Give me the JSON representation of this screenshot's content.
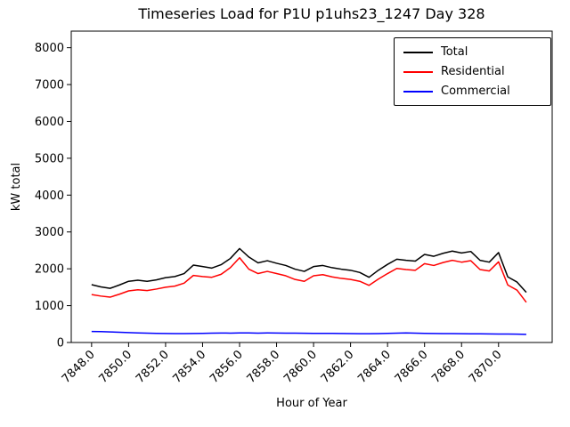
{
  "chart_data": {
    "type": "line",
    "title": "Timeseries Load for P1U p1uhs23_1247  Day 328",
    "xlabel": "Hour of Year",
    "ylabel": "kW total",
    "xlim": [
      7846.9,
      7872.9
    ],
    "ylim": [
      0,
      8450
    ],
    "grid": false,
    "legend_position": "upper right",
    "yticks": [
      0,
      1000,
      2000,
      3000,
      4000,
      5000,
      6000,
      7000,
      8000
    ],
    "ytick_labels": [
      "0",
      "1000",
      "2000",
      "3000",
      "4000",
      "5000",
      "6000",
      "7000",
      "8000"
    ],
    "xticks": [
      7848,
      7850,
      7852,
      7854,
      7856,
      7858,
      7860,
      7862,
      7864,
      7866,
      7868,
      7870
    ],
    "xtick_labels": [
      "7848.0",
      "7850.0",
      "7852.0",
      "7854.0",
      "7856.0",
      "7858.0",
      "7860.0",
      "7862.0",
      "7864.0",
      "7866.0",
      "7868.0",
      "7870.0"
    ],
    "x": [
      7848.0,
      7848.5,
      7849.0,
      7849.5,
      7850.0,
      7850.5,
      7851.0,
      7851.5,
      7852.0,
      7852.5,
      7853.0,
      7853.5,
      7854.0,
      7854.5,
      7855.0,
      7855.5,
      7856.0,
      7856.5,
      7857.0,
      7857.5,
      7858.0,
      7858.5,
      7859.0,
      7859.5,
      7860.0,
      7860.5,
      7861.0,
      7861.5,
      7862.0,
      7862.5,
      7863.0,
      7863.5,
      7864.0,
      7864.5,
      7865.0,
      7865.5,
      7866.0,
      7866.5,
      7867.0,
      7867.5,
      7868.0,
      7868.5,
      7869.0,
      7869.5,
      7870.0,
      7870.5,
      7871.0,
      7871.5
    ],
    "series": [
      {
        "name": "Total",
        "color": "#000000",
        "values": [
          1570,
          1510,
          1470,
          1560,
          1660,
          1690,
          1660,
          1700,
          1760,
          1790,
          1870,
          2100,
          2060,
          2020,
          2110,
          2280,
          2550,
          2320,
          2160,
          2220,
          2150,
          2090,
          1990,
          1930,
          2060,
          2090,
          2030,
          1990,
          1960,
          1900,
          1770,
          1960,
          2120,
          2260,
          2230,
          2210,
          2390,
          2340,
          2420,
          2480,
          2430,
          2470,
          2230,
          2180,
          2440,
          1780,
          1640,
          1360
        ]
      },
      {
        "name": "Residential",
        "color": "#ff0000",
        "values": [
          1300,
          1260,
          1230,
          1310,
          1400,
          1430,
          1410,
          1450,
          1500,
          1530,
          1610,
          1820,
          1790,
          1770,
          1850,
          2030,
          2300,
          1990,
          1870,
          1930,
          1870,
          1810,
          1710,
          1660,
          1810,
          1840,
          1780,
          1740,
          1710,
          1660,
          1550,
          1720,
          1870,
          2010,
          1980,
          1960,
          2140,
          2090,
          2170,
          2230,
          2180,
          2220,
          1980,
          1940,
          2190,
          1560,
          1420,
          1090
        ]
      },
      {
        "name": "Commercial",
        "color": "#0000ff",
        "values": [
          300,
          295,
          287,
          278,
          268,
          258,
          252,
          247,
          243,
          241,
          240,
          243,
          248,
          252,
          257,
          255,
          258,
          258,
          255,
          258,
          257,
          255,
          252,
          250,
          249,
          248,
          246,
          244,
          241,
          239,
          237,
          240,
          246,
          254,
          258,
          254,
          249,
          245,
          242,
          240,
          238,
          236,
          234,
          232,
          230,
          228,
          225,
          221
        ]
      }
    ]
  }
}
